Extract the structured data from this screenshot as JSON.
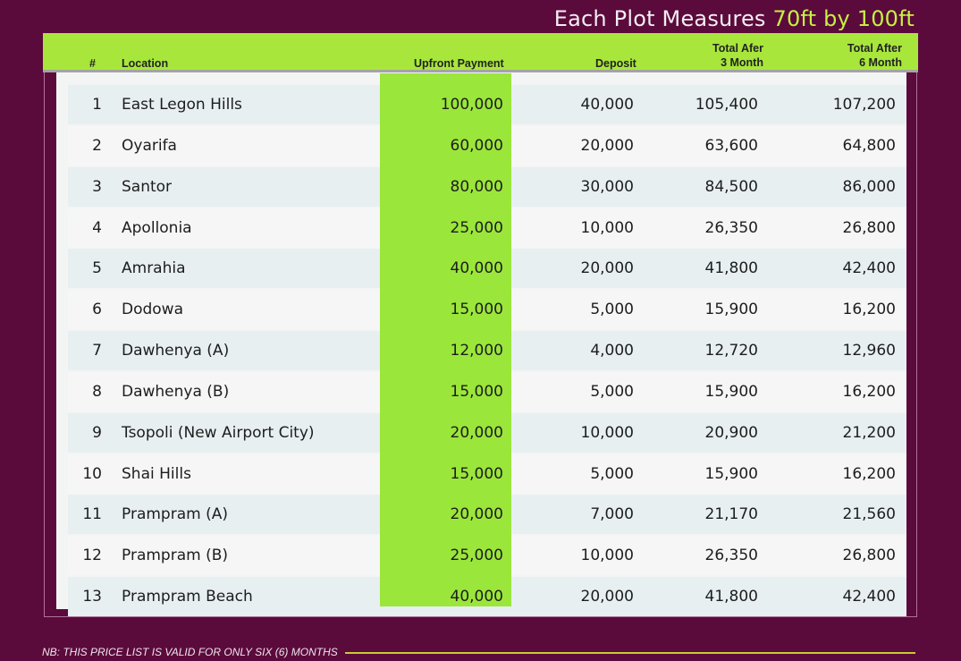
{
  "headline": {
    "prefix": "Each Plot Measures ",
    "accent": "70ft by 100ft"
  },
  "colors": {
    "background": "#5b0a3c",
    "header_green": "#a8e63c",
    "upfront_green": "#9be63a",
    "accent": "#c6f042",
    "rule": "#c8ca3a"
  },
  "table": {
    "headers": {
      "num": "#",
      "location": "Location",
      "upfront": "Upfront Payment",
      "deposit": "Deposit",
      "total3": "Total Afer\n3 Month",
      "total6": "Total After\n6 Month"
    },
    "rows": [
      {
        "num": "1",
        "location": "East Legon Hills",
        "upfront": "100,000",
        "deposit": "40,000",
        "total3": "105,400",
        "total6": "107,200"
      },
      {
        "num": "2",
        "location": "Oyarifa",
        "upfront": "60,000",
        "deposit": "20,000",
        "total3": "63,600",
        "total6": "64,800"
      },
      {
        "num": "3",
        "location": "Santor",
        "upfront": "80,000",
        "deposit": "30,000",
        "total3": "84,500",
        "total6": "86,000"
      },
      {
        "num": "4",
        "location": "Apollonia",
        "upfront": "25,000",
        "deposit": "10,000",
        "total3": "26,350",
        "total6": "26,800"
      },
      {
        "num": "5",
        "location": "Amrahia",
        "upfront": "40,000",
        "deposit": "20,000",
        "total3": "41,800",
        "total6": "42,400"
      },
      {
        "num": "6",
        "location": "Dodowa",
        "upfront": "15,000",
        "deposit": "5,000",
        "total3": "15,900",
        "total6": "16,200"
      },
      {
        "num": "7",
        "location": "Dawhenya (A)",
        "upfront": "12,000",
        "deposit": "4,000",
        "total3": "12,720",
        "total6": "12,960"
      },
      {
        "num": "8",
        "location": "Dawhenya (B)",
        "upfront": "15,000",
        "deposit": "5,000",
        "total3": "15,900",
        "total6": "16,200"
      },
      {
        "num": "9",
        "location": "Tsopoli (New Airport City)",
        "upfront": "20,000",
        "deposit": "10,000",
        "total3": "20,900",
        "total6": "21,200"
      },
      {
        "num": "10",
        "location": "Shai Hills",
        "upfront": "15,000",
        "deposit": "5,000",
        "total3": "15,900",
        "total6": "16,200"
      },
      {
        "num": "11",
        "location": "Prampram (A)",
        "upfront": "20,000",
        "deposit": "7,000",
        "total3": "21,170",
        "total6": "21,560"
      },
      {
        "num": "12",
        "location": "Prampram (B)",
        "upfront": "25,000",
        "deposit": "10,000",
        "total3": "26,350",
        "total6": "26,800"
      },
      {
        "num": "13",
        "location": "Prampram Beach",
        "upfront": "40,000",
        "deposit": "20,000",
        "total3": "41,800",
        "total6": "42,400"
      }
    ]
  },
  "footer_note": "NB: THIS PRICE  LIST IS VALID FOR ONLY SIX (6) MONTHS"
}
